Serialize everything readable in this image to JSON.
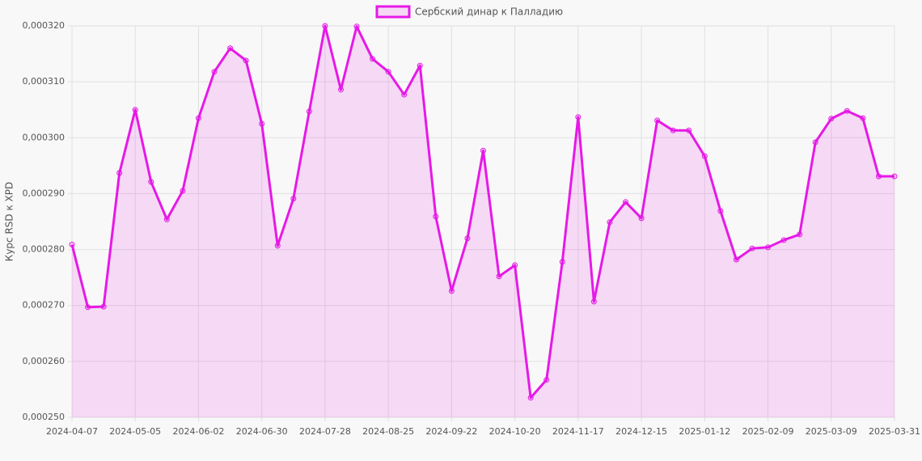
{
  "chart_data": {
    "type": "line",
    "y_label": "Курс RSD к XPD",
    "categories": [
      "2024-04-07",
      null,
      null,
      null,
      "2024-05-05",
      null,
      null,
      null,
      "2024-06-02",
      null,
      null,
      null,
      "2024-06-30",
      null,
      null,
      null,
      "2024-07-28",
      null,
      null,
      null,
      "2024-08-25",
      null,
      null,
      null,
      "2024-09-22",
      null,
      null,
      null,
      "2024-10-20",
      null,
      null,
      null,
      "2024-11-17",
      null,
      null,
      null,
      "2024-12-15",
      null,
      null,
      null,
      "2025-01-12",
      null,
      null,
      null,
      "2025-02-09",
      null,
      null,
      null,
      "2025-03-09",
      null,
      null,
      null,
      "2025-03-31"
    ],
    "series": [
      {
        "name": "Сербский динар к Палладию",
        "color": "#e619e6",
        "area_color": "rgba(230,25,230,0.14)",
        "values": [
          0.0002809,
          0.0002697,
          0.0002698,
          0.0002937,
          0.000305,
          0.0002921,
          0.0002854,
          0.0002905,
          0.0003035,
          0.0003118,
          0.000316,
          0.0003138,
          0.0003025,
          0.0002807,
          0.0002891,
          0.0003047,
          0.00032,
          0.0003086,
          0.0003199,
          0.0003141,
          0.0003118,
          0.0003077,
          0.0003129,
          0.0002859,
          0.0002726,
          0.000282,
          0.0002977,
          0.0002752,
          0.0002772,
          0.0002535,
          0.0002567,
          0.0002778,
          0.0003037,
          0.0002707,
          0.0002849,
          0.0002885,
          0.0002856,
          0.0003031,
          0.0003013,
          0.0003013,
          0.0002967,
          0.0002869,
          0.0002782,
          0.0002802,
          0.0002804,
          0.0002817,
          0.0002827,
          0.0002992,
          0.0003034,
          0.0003048,
          0.0003035,
          0.0002931,
          0.0002931
        ]
      }
    ],
    "ylim": [
      0.00025,
      0.00032
    ],
    "yticks": [
      {
        "value": 0.00025,
        "label": "0,000250"
      },
      {
        "value": 0.00026,
        "label": "0,000260"
      },
      {
        "value": 0.00027,
        "label": "0,000270"
      },
      {
        "value": 0.00028,
        "label": "0,000280"
      },
      {
        "value": 0.00029,
        "label": "0,000290"
      },
      {
        "value": 0.0003,
        "label": "0,000300"
      },
      {
        "value": 0.00031,
        "label": "0,000310"
      },
      {
        "value": 0.00032,
        "label": "0,000320"
      }
    ],
    "grid": true,
    "legend": "top"
  }
}
